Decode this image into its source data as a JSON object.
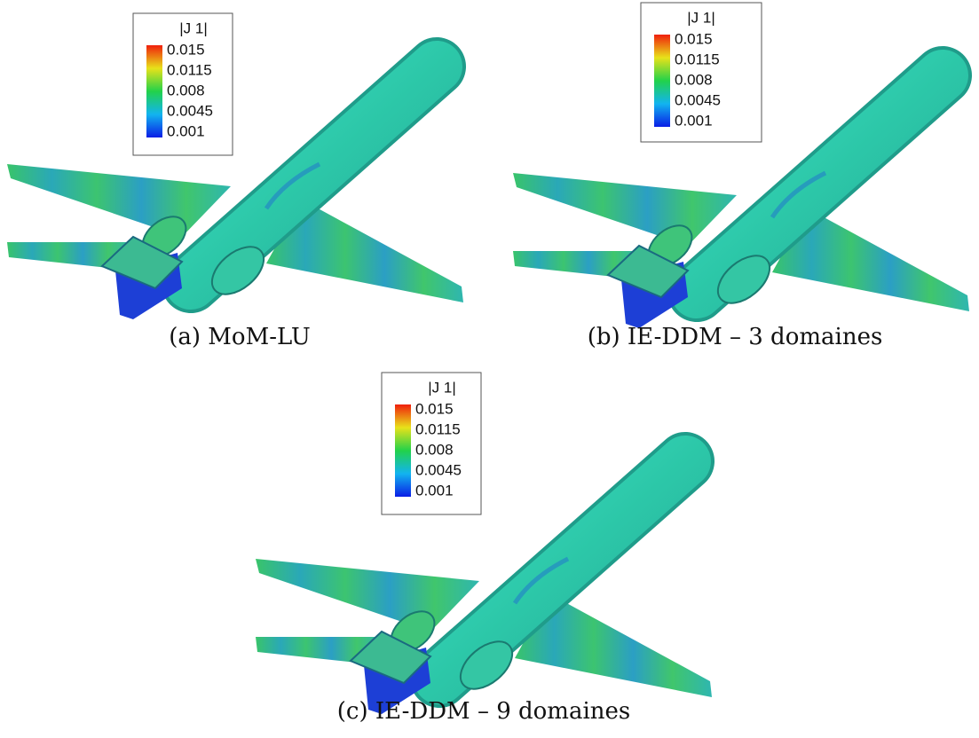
{
  "panels": [
    {
      "caption": "(a) MoM-LU",
      "legend": {
        "title": "|J   1|",
        "levels": [
          0.015,
          0.0115,
          0.008,
          0.0045,
          0.001
        ]
      }
    },
    {
      "caption": "(b) IE-DDM – 3 domaines",
      "legend": {
        "title": "|J   1|",
        "levels": [
          0.015,
          0.0115,
          0.008,
          0.0045,
          0.001
        ]
      }
    },
    {
      "caption": "(c) IE-DDM – 9 domaines",
      "legend": {
        "title": "|J   1|",
        "levels": [
          0.015,
          0.0115,
          0.008,
          0.0045,
          0.001
        ]
      }
    }
  ]
}
